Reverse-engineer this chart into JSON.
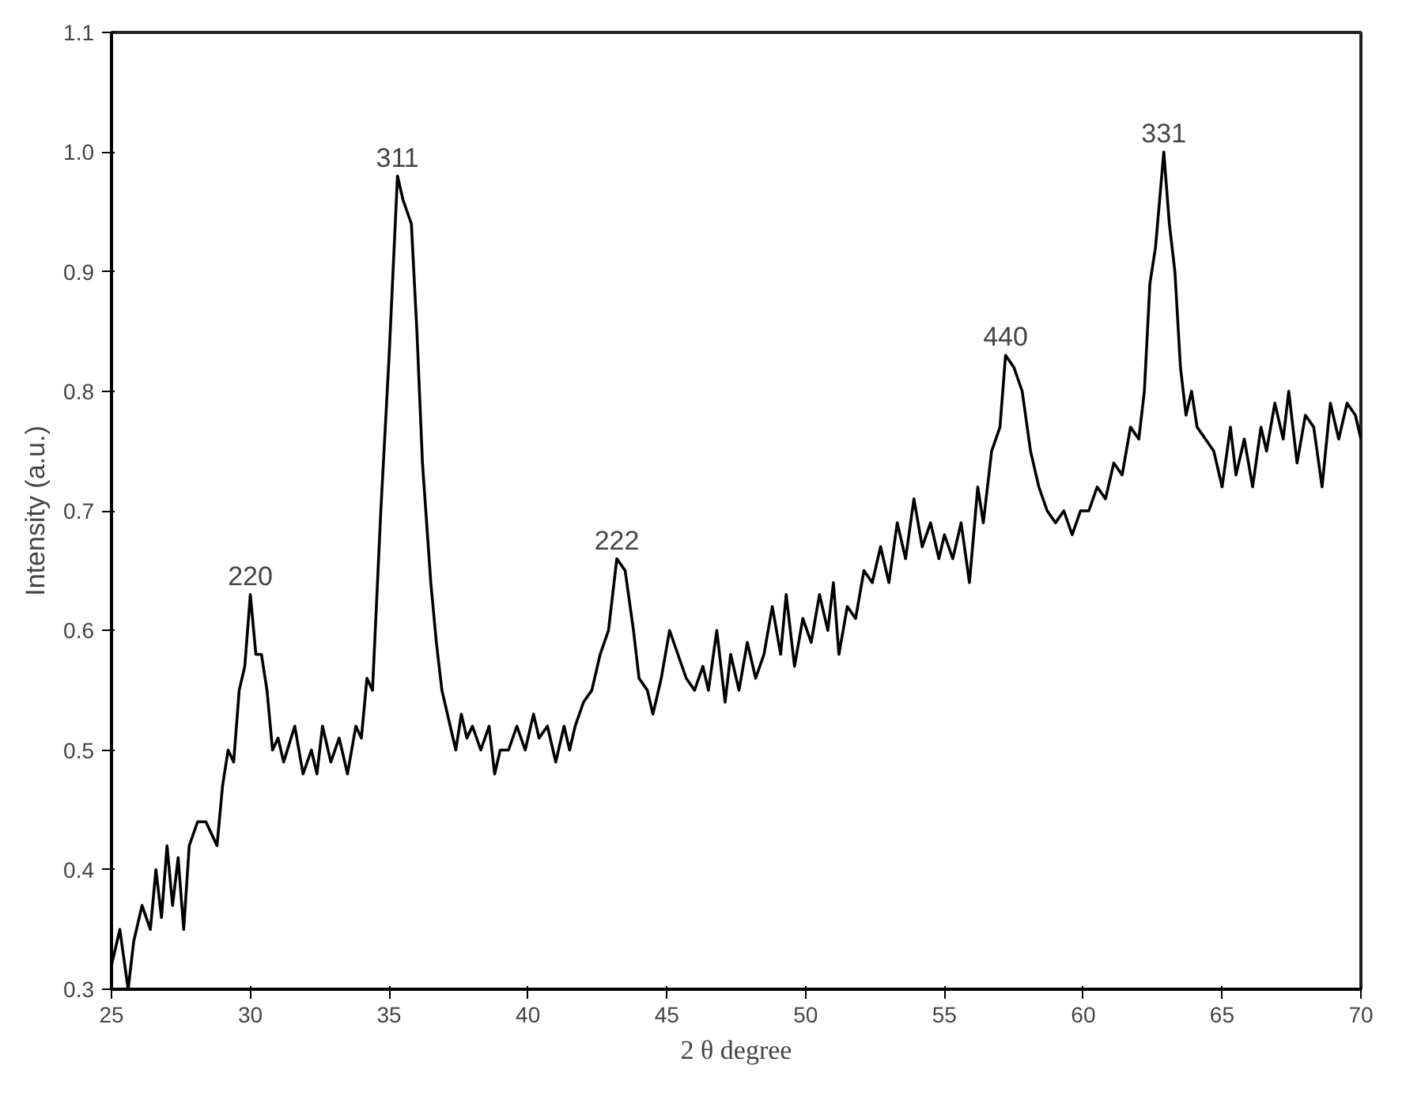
{
  "chart_data": {
    "type": "line",
    "xlabel": "2 θ degree",
    "ylabel": "Intensity (a.u.)",
    "xlim": [
      25,
      70
    ],
    "ylim": [
      0.3,
      1.1
    ],
    "xticks": [
      25,
      30,
      35,
      40,
      45,
      50,
      55,
      60,
      65,
      70
    ],
    "yticks": [
      {
        "value": 0.3,
        "label": "0.3"
      },
      {
        "value": 0.4,
        "label": "0.4"
      },
      {
        "value": 0.5,
        "label": "0.5"
      },
      {
        "value": 0.6,
        "label": "0.6"
      },
      {
        "value": 0.7,
        "label": "0.7"
      },
      {
        "value": 0.8,
        "label": "0.8"
      },
      {
        "value": 0.9,
        "label": "0.9"
      },
      {
        "value": 1.0,
        "label": "1.0"
      },
      {
        "value": 1.1,
        "label": "1.1"
      }
    ],
    "grid": false,
    "marker": "none",
    "line_style": "solid",
    "annotations": [
      {
        "text": "220",
        "x": 30.0,
        "y": 0.63
      },
      {
        "text": "311",
        "x": 35.3,
        "y": 0.98
      },
      {
        "text": "222",
        "x": 43.2,
        "y": 0.66
      },
      {
        "text": "440",
        "x": 57.2,
        "y": 0.83
      },
      {
        "text": "331",
        "x": 62.9,
        "y": 1.0
      }
    ],
    "series": [
      {
        "color": "#000000",
        "x": [
          25.0,
          25.3,
          25.6,
          25.8,
          26.1,
          26.4,
          26.6,
          26.8,
          27.0,
          27.2,
          27.4,
          27.6,
          27.8,
          28.1,
          28.4,
          28.6,
          28.8,
          29.0,
          29.2,
          29.4,
          29.6,
          29.8,
          30.0,
          30.2,
          30.4,
          30.6,
          30.8,
          31.0,
          31.2,
          31.6,
          31.9,
          32.2,
          32.4,
          32.6,
          32.9,
          33.2,
          33.5,
          33.8,
          34.0,
          34.2,
          34.4,
          34.7,
          35.0,
          35.3,
          35.5,
          35.8,
          36.0,
          36.2,
          36.5,
          36.7,
          36.9,
          37.2,
          37.4,
          37.6,
          37.8,
          38.0,
          38.3,
          38.6,
          38.8,
          39.0,
          39.3,
          39.6,
          39.9,
          40.2,
          40.4,
          40.7,
          41.0,
          41.3,
          41.5,
          41.7,
          42.0,
          42.3,
          42.6,
          42.9,
          43.2,
          43.5,
          43.8,
          44.0,
          44.3,
          44.5,
          44.8,
          45.1,
          45.4,
          45.7,
          46.0,
          46.3,
          46.5,
          46.8,
          47.1,
          47.3,
          47.6,
          47.9,
          48.2,
          48.5,
          48.8,
          49.1,
          49.3,
          49.6,
          49.9,
          50.2,
          50.5,
          50.8,
          51.0,
          51.2,
          51.5,
          51.8,
          52.1,
          52.4,
          52.7,
          53.0,
          53.3,
          53.6,
          53.9,
          54.2,
          54.5,
          54.8,
          55.0,
          55.3,
          55.6,
          55.9,
          56.2,
          56.4,
          56.7,
          57.0,
          57.2,
          57.5,
          57.8,
          58.1,
          58.4,
          58.7,
          59.0,
          59.3,
          59.6,
          59.9,
          60.2,
          60.5,
          60.8,
          61.1,
          61.4,
          61.7,
          62.0,
          62.2,
          62.4,
          62.6,
          62.9,
          63.1,
          63.3,
          63.5,
          63.7,
          63.9,
          64.1,
          64.4,
          64.7,
          65.0,
          65.3,
          65.5,
          65.8,
          66.1,
          66.4,
          66.6,
          66.9,
          67.2,
          67.4,
          67.7,
          68.0,
          68.3,
          68.6,
          68.9,
          69.2,
          69.5,
          69.8,
          70.0
        ],
        "values": [
          0.32,
          0.35,
          0.3,
          0.34,
          0.37,
          0.35,
          0.4,
          0.36,
          0.42,
          0.37,
          0.41,
          0.35,
          0.42,
          0.44,
          0.44,
          0.43,
          0.42,
          0.47,
          0.5,
          0.49,
          0.55,
          0.57,
          0.63,
          0.58,
          0.58,
          0.55,
          0.5,
          0.51,
          0.49,
          0.52,
          0.48,
          0.5,
          0.48,
          0.52,
          0.49,
          0.51,
          0.48,
          0.52,
          0.51,
          0.56,
          0.55,
          0.7,
          0.83,
          0.98,
          0.96,
          0.94,
          0.85,
          0.74,
          0.64,
          0.59,
          0.55,
          0.52,
          0.5,
          0.53,
          0.51,
          0.52,
          0.5,
          0.52,
          0.48,
          0.5,
          0.5,
          0.52,
          0.5,
          0.53,
          0.51,
          0.52,
          0.49,
          0.52,
          0.5,
          0.52,
          0.54,
          0.55,
          0.58,
          0.6,
          0.66,
          0.65,
          0.6,
          0.56,
          0.55,
          0.53,
          0.56,
          0.6,
          0.58,
          0.56,
          0.55,
          0.57,
          0.55,
          0.6,
          0.54,
          0.58,
          0.55,
          0.59,
          0.56,
          0.58,
          0.62,
          0.58,
          0.63,
          0.57,
          0.61,
          0.59,
          0.63,
          0.6,
          0.64,
          0.58,
          0.62,
          0.61,
          0.65,
          0.64,
          0.67,
          0.64,
          0.69,
          0.66,
          0.71,
          0.67,
          0.69,
          0.66,
          0.68,
          0.66,
          0.69,
          0.64,
          0.72,
          0.69,
          0.75,
          0.77,
          0.83,
          0.82,
          0.8,
          0.75,
          0.72,
          0.7,
          0.69,
          0.7,
          0.68,
          0.7,
          0.7,
          0.72,
          0.71,
          0.74,
          0.73,
          0.77,
          0.76,
          0.8,
          0.89,
          0.92,
          1.0,
          0.94,
          0.9,
          0.82,
          0.78,
          0.8,
          0.77,
          0.76,
          0.75,
          0.72,
          0.77,
          0.73,
          0.76,
          0.72,
          0.77,
          0.75,
          0.79,
          0.76,
          0.8,
          0.74,
          0.78,
          0.77,
          0.72,
          0.79,
          0.76,
          0.79,
          0.78,
          0.76
        ]
      }
    ]
  }
}
